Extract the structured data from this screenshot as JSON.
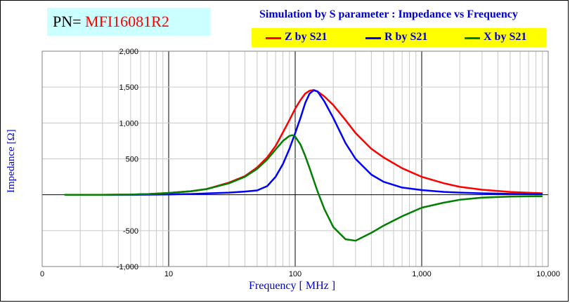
{
  "header": {
    "pn_prefix": "PN= ",
    "pn_value": "MFI16081R2",
    "title": "Simulation by S parameter : Impedance vs Frequency"
  },
  "chart_data": {
    "type": "line",
    "title": "Simulation by S parameter : Impedance vs Frequency",
    "xlabel": "Frequency [ MHz ]",
    "ylabel": "Impedance [Ω]",
    "xscale": "log",
    "xlim": [
      1,
      10000
    ],
    "ylim": [
      -1000,
      2000
    ],
    "x_tick_labels": [
      "0",
      "10",
      "100",
      "1,000",
      "10,000"
    ],
    "x_tick_values": [
      1,
      10,
      100,
      1000,
      10000
    ],
    "y_tick_labels": [
      "2,000",
      "1,500",
      "1,000",
      "500",
      "-",
      "-500",
      "-1,000"
    ],
    "y_tick_values": [
      2000,
      1500,
      1000,
      500,
      0,
      -500,
      -1000
    ],
    "grid": true,
    "legend_position": "top-right",
    "series": [
      {
        "name": "Z by S21",
        "color": "#ff0000",
        "x": [
          3,
          5,
          7,
          10,
          15,
          20,
          30,
          40,
          50,
          60,
          70,
          80,
          90,
          100,
          110,
          120,
          130,
          140,
          150,
          170,
          200,
          250,
          300,
          400,
          500,
          700,
          1000,
          1500,
          2000,
          3000,
          5000,
          9000
        ],
        "y": [
          0,
          3,
          10,
          25,
          50,
          80,
          170,
          260,
          380,
          520,
          680,
          870,
          1040,
          1200,
          1320,
          1410,
          1450,
          1460,
          1440,
          1370,
          1250,
          1040,
          860,
          640,
          520,
          370,
          250,
          160,
          110,
          70,
          40,
          20
        ]
      },
      {
        "name": "R by S21",
        "color": "#0000ff",
        "x": [
          3,
          5,
          7,
          10,
          15,
          20,
          30,
          40,
          50,
          60,
          70,
          80,
          90,
          100,
          110,
          120,
          130,
          140,
          150,
          170,
          200,
          250,
          300,
          400,
          500,
          700,
          1000,
          1500,
          2000,
          3000,
          5000,
          9000
        ],
        "y": [
          0,
          0,
          2,
          5,
          10,
          18,
          30,
          45,
          60,
          120,
          250,
          430,
          640,
          860,
          1070,
          1280,
          1410,
          1455,
          1440,
          1300,
          1070,
          720,
          500,
          280,
          180,
          100,
          65,
          40,
          30,
          20,
          12,
          10
        ]
      },
      {
        "name": "X by S21",
        "color": "#008000",
        "x": [
          1.5,
          3,
          5,
          7,
          10,
          15,
          20,
          30,
          40,
          50,
          60,
          70,
          80,
          90,
          95,
          100,
          110,
          120,
          130,
          150,
          170,
          200,
          250,
          300,
          400,
          500,
          700,
          1000,
          1500,
          2000,
          3000,
          5000,
          9000
        ],
        "y": [
          0,
          0,
          3,
          10,
          25,
          50,
          80,
          160,
          250,
          360,
          490,
          630,
          750,
          820,
          830,
          810,
          700,
          540,
          370,
          50,
          -200,
          -450,
          -620,
          -640,
          -530,
          -430,
          -300,
          -180,
          -110,
          -70,
          -40,
          -25,
          -20
        ]
      }
    ]
  }
}
